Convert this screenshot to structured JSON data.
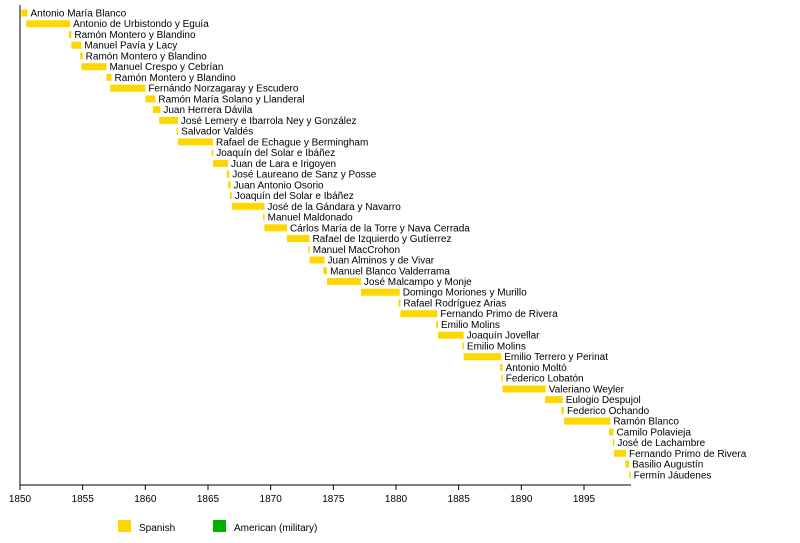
{
  "chart_data": {
    "type": "timeline",
    "xlim": [
      1850,
      1898.75
    ],
    "x_ticks": [
      1850,
      1855,
      1860,
      1865,
      1870,
      1875,
      1880,
      1885,
      1890,
      1895
    ],
    "grid": false,
    "legend_placement": "bottom-left",
    "legend": [
      {
        "name": "Spanish",
        "color": "#FFD700"
      },
      {
        "name": "American (military)",
        "color": "#00B000"
      }
    ],
    "bars": [
      {
        "label": "Antonio María Blanco",
        "start": 1850.1,
        "end": 1850.6
      },
      {
        "label": "Antonio de Urbistondo y Eguía",
        "start": 1850.5,
        "end": 1854.0
      },
      {
        "label": "Ramón Montero y Blandino",
        "start": 1853.9,
        "end": 1854.1
      },
      {
        "label": "Manuel Pavía y Lacy",
        "start": 1854.1,
        "end": 1854.9
      },
      {
        "label": "Ramón Montero y Blandino",
        "start": 1854.8,
        "end": 1855.0
      },
      {
        "label": "Manuel Crespo y Cebrían",
        "start": 1854.9,
        "end": 1856.9
      },
      {
        "label": "Ramón Montero y Blandino",
        "start": 1856.9,
        "end": 1857.3
      },
      {
        "label": "Fernándo Norzagaray y Escudero",
        "start": 1857.2,
        "end": 1860.0
      },
      {
        "label": "Ramón María Solano y Llanderal",
        "start": 1860.0,
        "end": 1860.8
      },
      {
        "label": "Juan Herrera Dávila",
        "start": 1860.6,
        "end": 1861.2
      },
      {
        "label": "José Lemery e Ibarrola Ney y González",
        "start": 1861.1,
        "end": 1862.6
      },
      {
        "label": "Salvador Valdés",
        "start": 1862.5,
        "end": 1862.6
      },
      {
        "label": "Rafael de Echague y Bermingham",
        "start": 1862.6,
        "end": 1865.4
      },
      {
        "label": "Joaquín del Solar e Ibáñez",
        "start": 1865.3,
        "end": 1865.4
      },
      {
        "label": "Juan de Lara e Irigoyen",
        "start": 1865.4,
        "end": 1866.6
      },
      {
        "label": "José Laureano de Sanz y Posse",
        "start": 1866.5,
        "end": 1866.7
      },
      {
        "label": "Juan Antonio Osorio",
        "start": 1866.6,
        "end": 1866.8
      },
      {
        "label": "Joaquín del Solar e Ibáñez",
        "start": 1866.75,
        "end": 1866.9
      },
      {
        "label": "José de la Gándara y Navarro",
        "start": 1866.9,
        "end": 1869.5
      },
      {
        "label": "Manuel Maldonado",
        "start": 1869.4,
        "end": 1869.5
      },
      {
        "label": "Cárlos María de la Torre y Nava Cerrada",
        "start": 1869.5,
        "end": 1871.3
      },
      {
        "label": "Rafael de Izquierdo y Gutíerrez",
        "start": 1871.3,
        "end": 1873.1
      },
      {
        "label": "Manuel MacCrohon",
        "start": 1873.0,
        "end": 1873.1
      },
      {
        "label": "Juan Alminos y de Vivar",
        "start": 1873.1,
        "end": 1874.3
      },
      {
        "label": "Manuel Blanco Valderrama",
        "start": 1874.2,
        "end": 1874.5
      },
      {
        "label": "José Malcampo y Monje",
        "start": 1874.5,
        "end": 1877.2
      },
      {
        "label": "Domingo Moriones y Murillo",
        "start": 1877.2,
        "end": 1880.3
      },
      {
        "label": "Rafael Rodríguez Arias",
        "start": 1880.2,
        "end": 1880.35
      },
      {
        "label": "Fernando Primo de Rivera",
        "start": 1880.35,
        "end": 1883.3
      },
      {
        "label": "Emilio Molins",
        "start": 1883.2,
        "end": 1883.35
      },
      {
        "label": "Joaquín Jovellar",
        "start": 1883.35,
        "end": 1885.4
      },
      {
        "label": "Emilio Molins",
        "start": 1885.3,
        "end": 1885.4
      },
      {
        "label": "Emilio Terrero y Perinat",
        "start": 1885.4,
        "end": 1888.4
      },
      {
        "label": "Antonio Moltó",
        "start": 1888.3,
        "end": 1888.5
      },
      {
        "label": "Federico Lobatón",
        "start": 1888.4,
        "end": 1888.5
      },
      {
        "label": "Valeriano Weyler",
        "start": 1888.5,
        "end": 1891.95
      },
      {
        "label": "Eulogio Despujol",
        "start": 1891.9,
        "end": 1893.3
      },
      {
        "label": "Federico Ochando",
        "start": 1893.2,
        "end": 1893.4
      },
      {
        "label": "Ramón Blanco",
        "start": 1893.4,
        "end": 1897.1
      },
      {
        "label": "Camilo Polavieja",
        "start": 1897.0,
        "end": 1897.35
      },
      {
        "label": "José de Lachambre",
        "start": 1897.3,
        "end": 1897.4
      },
      {
        "label": "Fernando Primo de Rivera",
        "start": 1897.4,
        "end": 1898.35
      },
      {
        "label": "Basilio Augustín",
        "start": 1898.3,
        "end": 1898.6
      },
      {
        "label": "Fermín Jáudenes",
        "start": 1898.6,
        "end": 1898.7
      }
    ]
  }
}
